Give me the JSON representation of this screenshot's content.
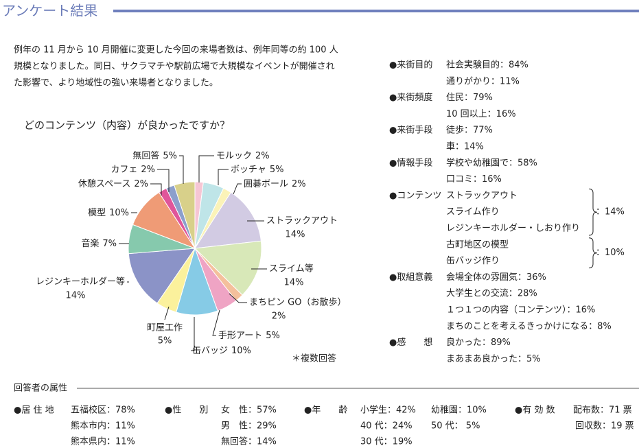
{
  "header": {
    "title": "アンケート結果"
  },
  "intro": [
    "例年の 11 月から 10 月開催に変更した今回の来場者数は、例年同等の約 100 人",
    "規模となりました。同日、サクラマチや駅前広場で大規模なイベントが開催され",
    "た影響で、より地域性の強い来場者となりました。"
  ],
  "chart_data": {
    "type": "pie",
    "title": "どのコンテンツ（内容）が良かったですか？",
    "categories": [
      "モルック",
      "ボッチャ",
      "囲碁ボール",
      "ストラックアウト",
      "スライム等",
      "まちピン GO（お散歩）",
      "手形アート",
      "缶バッジ",
      "町屋工作",
      "レジンキーホルダー等",
      "音楽",
      "模型",
      "休憩スペース",
      "カフェ",
      "無回答"
    ],
    "values": [
      2,
      5,
      2,
      14,
      14,
      2,
      5,
      10,
      5,
      14,
      7,
      10,
      2,
      2,
      5
    ],
    "value_labels": [
      "2%",
      "5%",
      "2%",
      "14%",
      "14%",
      "2%",
      "5%",
      "10%",
      "5%",
      "14%",
      "7%",
      "10%",
      "2%",
      "2%",
      "5%"
    ],
    "colors": [
      "#f6c6d4",
      "#bfe5e8",
      "#fbf3b8",
      "#d2cbe3",
      "#d8e8b8",
      "#f4c09c",
      "#efa4c4",
      "#86cbe6",
      "#fbf19c",
      "#8b93c7",
      "#86c9ad",
      "#ef9b76",
      "#e0559a",
      "#8c9fcc",
      "#d8d08a"
    ],
    "note": "＊複数回答"
  },
  "results": [
    {
      "heading": "●来街目的",
      "items": [
        "社会実験目的：84%",
        "通りがかり：11%"
      ]
    },
    {
      "heading": "●来街頻度",
      "items": [
        "住民：79%",
        "10 回以上：16%"
      ]
    },
    {
      "heading": "●来街手段",
      "items": [
        "徒歩：77%",
        "車：14%"
      ]
    },
    {
      "heading": "●情報手段",
      "items": [
        "学校や幼稚園で：58%",
        "口コミ：16%"
      ]
    },
    {
      "heading": "●コンテンツ",
      "groups": [
        {
          "items": [
            "ストラックアウト",
            "スライム作り",
            "レジンキーホルダー・しおり作り"
          ],
          "share": "：14%"
        },
        {
          "items": [
            "古町地区の模型",
            "缶バッジ作り"
          ],
          "share": "：10%"
        }
      ]
    },
    {
      "heading": "●取組意義",
      "items": [
        "会場全体の雰囲気：36%",
        "大学生との交流：28%",
        "１つ１つの内容（コンテンツ）：16%",
        "まちのことを考えるきっかけになる：8%"
      ]
    },
    {
      "heading": "●感　　想",
      "items": [
        "良かった：89%",
        "まあまあ良かった：5%"
      ]
    }
  ],
  "attributes": {
    "title": "回答者の属性",
    "columns": [
      {
        "heading": "●居 住 地",
        "items": [
          [
            "五福校区：78%",
            "熊本市内：11%",
            "熊本県内：11%"
          ]
        ]
      },
      {
        "heading": "●性　　別",
        "items": [
          [
            "女　性：57%",
            "男　性：29%",
            "無回答：14%"
          ]
        ]
      },
      {
        "heading": "●年　　齢",
        "items": [
          [
            "小学生：42%",
            "40 代：24%",
            "30 代：19%"
          ],
          [
            "幼稚園：10%",
            "50 代： 5%"
          ]
        ]
      },
      {
        "heading": "●有 効 数",
        "items": [
          [
            "配布数：71 票",
            "回収数：19 票"
          ]
        ]
      }
    ]
  }
}
